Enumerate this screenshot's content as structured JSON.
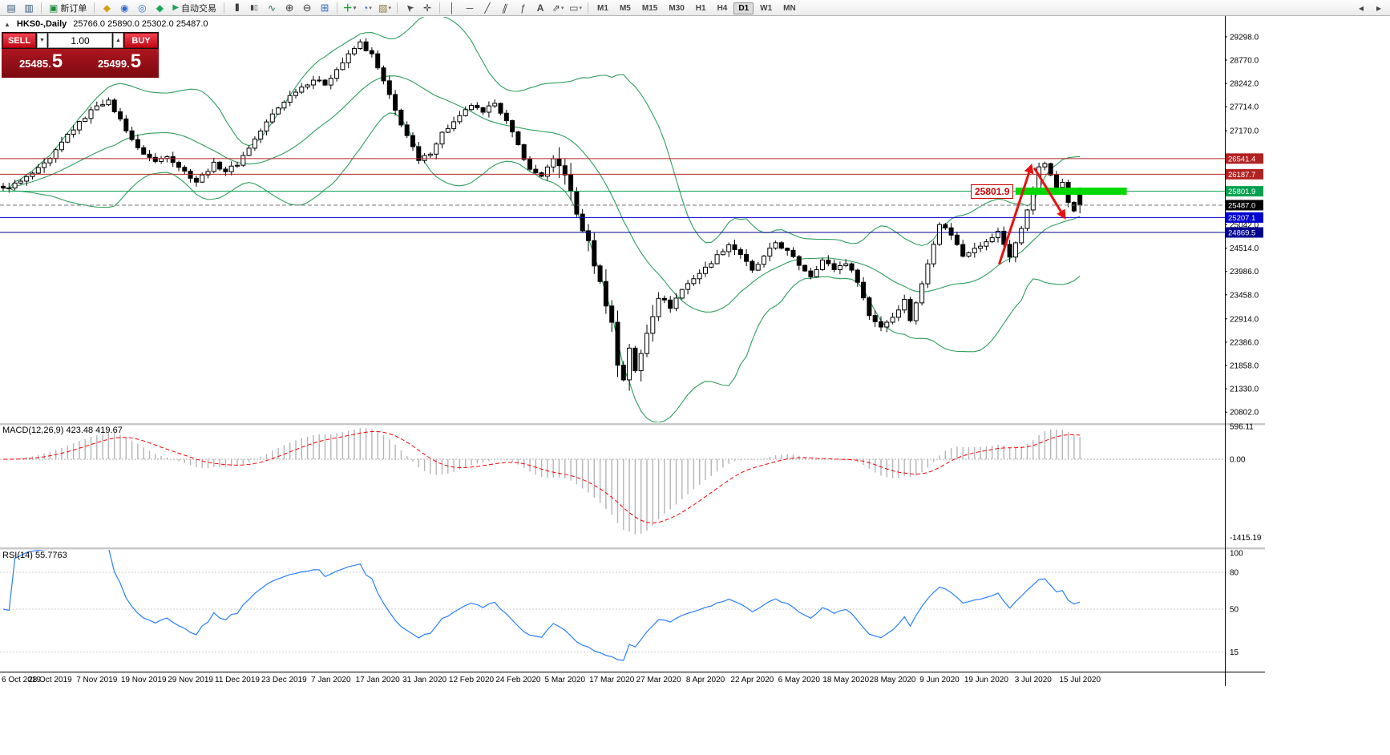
{
  "toolbar": {
    "new_order": "新订单",
    "autotrade": "自动交易",
    "timeframes": [
      "M1",
      "M5",
      "M15",
      "M30",
      "H1",
      "H4",
      "D1",
      "W1",
      "MN"
    ],
    "active_timeframe": "D1"
  },
  "chart_header": {
    "symbol_period": "HKS0-,Daily",
    "ohlc": "25766.0 25890.0 25302.0 25487.0"
  },
  "trade_panel": {
    "sell_label": "SELL",
    "buy_label": "BUY",
    "lot": "1.00",
    "sell_price": "25485.",
    "sell_price_big": "5",
    "buy_price": "25499.",
    "buy_price_big": "5"
  },
  "macd_panel": {
    "label": "MACD(12,26,9) 423.48 419.67",
    "scale": {
      "max": "596.11",
      "zero": "0.00",
      "min": "-1415.19"
    }
  },
  "rsi_panel": {
    "label": "RSI(14) 55.7763",
    "levels": [
      100,
      80,
      50,
      15
    ]
  },
  "callout": {
    "text": "25801.9"
  },
  "chart_data": {
    "type": "candlestick",
    "symbol": "HKS0-",
    "timeframe": "Daily",
    "bars": 185,
    "price_range": [
      20570,
      29750
    ],
    "price_axis_ticks": [
      29298.0,
      28770.0,
      28242.0,
      27714.0,
      27170.0,
      25042.0,
      24514.0,
      23986.0,
      23458.0,
      22914.0,
      22386.0,
      21858.0,
      21330.0,
      20802.0
    ],
    "levels": [
      {
        "price": 26541.4,
        "color": "#b22222",
        "style": "solid",
        "label_bg": "#b22222"
      },
      {
        "price": 26187.7,
        "color": "#b22222",
        "style": "solid",
        "label_bg": "#b22222"
      },
      {
        "price": 25801.9,
        "color": "#00a050",
        "style": "solid",
        "label_bg": "#00a050"
      },
      {
        "price": 25487.0,
        "color": "#777777",
        "style": "dash",
        "label_bg": "#000000"
      },
      {
        "price": 25207.1,
        "color": "#0000d0",
        "style": "solid",
        "label_bg": "#0000d0"
      },
      {
        "price": 24869.5,
        "color": "#000090",
        "style": "solid",
        "label_bg": "#000090"
      }
    ],
    "highlight_bar": {
      "price": 25801.9,
      "from_bar": 173,
      "to_bar": 192,
      "color": "#00d800",
      "thickness": 9
    },
    "arrows": [
      {
        "from_bar": 170.2,
        "from_price": 24150,
        "to_bar": 175.8,
        "to_price": 26430,
        "color": "#e81010"
      },
      {
        "from_bar": 176.2,
        "from_price": 26330,
        "to_bar": 181.6,
        "to_price": 25160,
        "color": "#e81010"
      }
    ],
    "date_labels": [
      "6 Oct 2019",
      "28 Oct 2019",
      "7 Nov 2019",
      "19 Nov 2019",
      "29 Nov 2019",
      "11 Dec 2019",
      "23 Dec 2019",
      "7 Jan 2020",
      "17 Jan 2020",
      "31 Jan 2020",
      "12 Feb 2020",
      "24 Feb 2020",
      "5 Mar 2020",
      "17 Mar 2020",
      "27 Mar 2020",
      "8 Apr 2020",
      "22 Apr 2020",
      "6 May 2020",
      "18 May 2020",
      "28 May 2020",
      "9 Jun 2020",
      "19 Jun 2020",
      "3 Jul 2020",
      "15 Jul 2020"
    ],
    "label_every_bars": 8,
    "last_bar": {
      "o": 25766.0,
      "h": 25890.0,
      "l": 25302.0,
      "c": 25487.0
    },
    "close_keypoints": [
      [
        0,
        25850
      ],
      [
        3,
        26020
      ],
      [
        6,
        26300
      ],
      [
        8,
        26520
      ],
      [
        11,
        27080
      ],
      [
        14,
        27480
      ],
      [
        16,
        27760
      ],
      [
        18,
        27830
      ],
      [
        20,
        27420
      ],
      [
        23,
        26760
      ],
      [
        26,
        26470
      ],
      [
        28,
        26620
      ],
      [
        30,
        26360
      ],
      [
        33,
        26020
      ],
      [
        36,
        26420
      ],
      [
        38,
        26260
      ],
      [
        40,
        26420
      ],
      [
        43,
        26980
      ],
      [
        46,
        27540
      ],
      [
        48,
        27840
      ],
      [
        50,
        28080
      ],
      [
        53,
        28330
      ],
      [
        55,
        28230
      ],
      [
        57,
        28560
      ],
      [
        60,
        29030
      ],
      [
        61,
        29160
      ],
      [
        63,
        28880
      ],
      [
        65,
        28280
      ],
      [
        67,
        27620
      ],
      [
        69,
        27060
      ],
      [
        71,
        26480
      ],
      [
        73,
        26680
      ],
      [
        75,
        27120
      ],
      [
        78,
        27480
      ],
      [
        80,
        27760
      ],
      [
        82,
        27560
      ],
      [
        84,
        27830
      ],
      [
        86,
        27380
      ],
      [
        88,
        26840
      ],
      [
        90,
        26280
      ],
      [
        92,
        26160
      ],
      [
        94,
        26500
      ],
      [
        96,
        26220
      ],
      [
        98,
        25280
      ],
      [
        100,
        24620
      ],
      [
        102,
        23720
      ],
      [
        104,
        22820
      ],
      [
        105,
        21880
      ],
      [
        106,
        21560
      ],
      [
        107,
        22280
      ],
      [
        108,
        21700
      ],
      [
        109,
        22120
      ],
      [
        110,
        22620
      ],
      [
        112,
        23440
      ],
      [
        114,
        23180
      ],
      [
        116,
        23580
      ],
      [
        118,
        23840
      ],
      [
        120,
        24060
      ],
      [
        122,
        24340
      ],
      [
        124,
        24600
      ],
      [
        126,
        24380
      ],
      [
        128,
        23990
      ],
      [
        130,
        24310
      ],
      [
        132,
        24640
      ],
      [
        134,
        24440
      ],
      [
        136,
        24140
      ],
      [
        138,
        23890
      ],
      [
        140,
        24240
      ],
      [
        142,
        24040
      ],
      [
        144,
        24190
      ],
      [
        146,
        23780
      ],
      [
        148,
        22990
      ],
      [
        150,
        22740
      ],
      [
        152,
        22960
      ],
      [
        154,
        23340
      ],
      [
        155,
        22890
      ],
      [
        157,
        23690
      ],
      [
        159,
        24640
      ],
      [
        160,
        25080
      ],
      [
        162,
        24830
      ],
      [
        164,
        24340
      ],
      [
        166,
        24540
      ],
      [
        168,
        24640
      ],
      [
        170,
        24880
      ],
      [
        172,
        24330
      ],
      [
        174,
        24940
      ],
      [
        176,
        25840
      ],
      [
        177,
        26320
      ],
      [
        178,
        26440
      ],
      [
        179,
        26140
      ],
      [
        180,
        25890
      ],
      [
        181,
        26040
      ],
      [
        182,
        25590
      ],
      [
        183,
        25340
      ],
      [
        184,
        25487
      ]
    ],
    "indicators": {
      "bollinger": {
        "period": 20,
        "deviation": 2,
        "color": "#2e9e5b"
      },
      "macd": {
        "fast": 12,
        "slow": 26,
        "signal": 9,
        "hist_color": "#b4b4b4",
        "signal_color": "#ff0000"
      },
      "rsi": {
        "period": 14,
        "color": "#2a7fff"
      }
    }
  }
}
